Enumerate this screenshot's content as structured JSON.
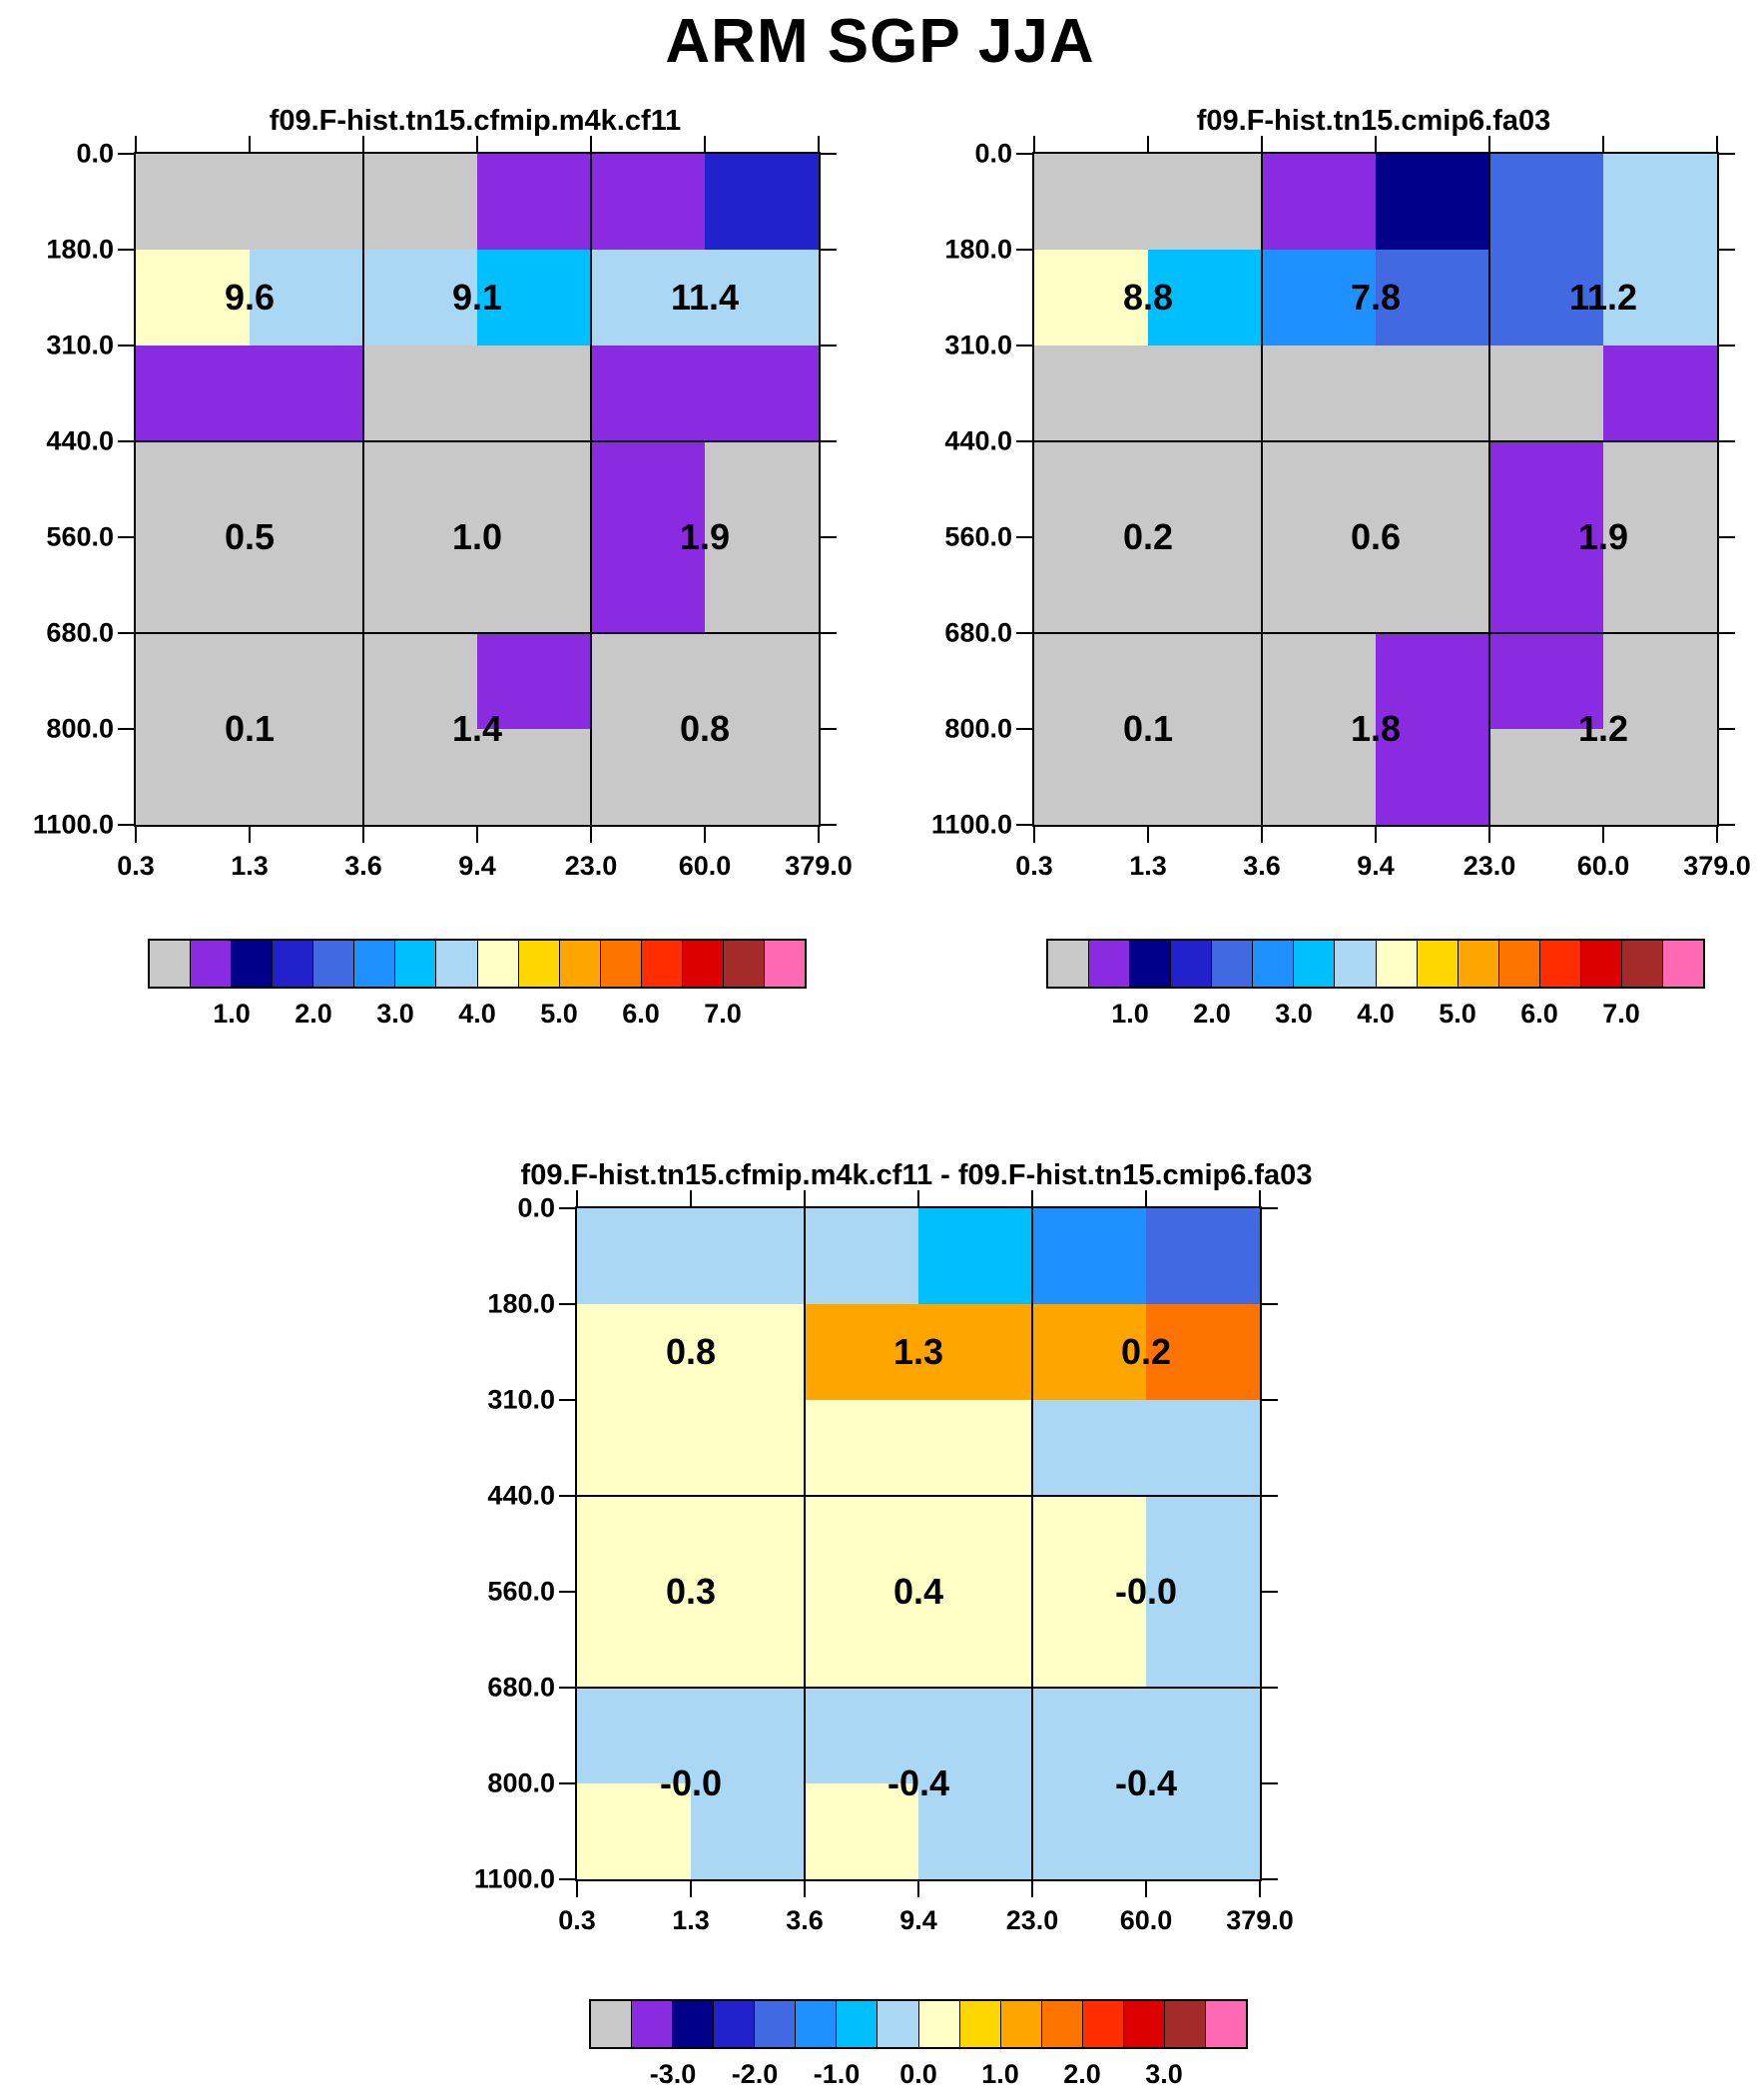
{
  "title": "ARM SGP JJA",
  "palette": {
    "gray": "#C8C8C8",
    "purple": "#8A2BE2",
    "navy": "#00008B",
    "blue": "#2222CC",
    "royal": "#4169E1",
    "dodger": "#1E90FF",
    "cyan": "#00BFFF",
    "lightblue": "#A9D7F4",
    "cream": "#FFFFC6",
    "gold": "#FFD700",
    "orange": "#FFA500",
    "darkorange": "#FF7300",
    "redorange": "#FF2D00",
    "red": "#DC0000",
    "brick": "#A52A2A",
    "pink": "#FF69B4"
  },
  "colorbar_sequence": [
    "gray",
    "purple",
    "navy",
    "blue",
    "royal",
    "dodger",
    "cyan",
    "lightblue",
    "cream",
    "gold",
    "orange",
    "darkorange",
    "redorange",
    "red",
    "brick",
    "pink"
  ],
  "chart_data": {
    "type": "heatmap",
    "x_bin_edges": [
      0.3,
      1.3,
      3.6,
      9.4,
      23.0,
      60.0,
      379.0
    ],
    "y_bin_edges": [
      0.0,
      180.0,
      310.0,
      440.0,
      560.0,
      680.0,
      800.0,
      1100.0
    ],
    "x_tick_labels": [
      "0.3",
      "1.3",
      "3.6",
      "9.4",
      "23.0",
      "60.0",
      "379.0"
    ],
    "y_tick_labels": [
      "0.0",
      "180.0",
      "310.0",
      "440.0",
      "560.0",
      "680.0",
      "800.0",
      "1100.0"
    ],
    "panels": [
      {
        "title": "f09.F-hist.tn15.cfmip.m4k.cf11",
        "colorbar_labels": [
          "1.0",
          "2.0",
          "3.0",
          "4.0",
          "5.0",
          "6.0",
          "7.0"
        ],
        "block_values": [
          [
            "9.6",
            "9.1",
            "11.4"
          ],
          [
            "0.5",
            "1.0",
            "1.9"
          ],
          [
            "0.1",
            "1.4",
            "0.8"
          ]
        ],
        "cells": [
          [
            "gray",
            "gray",
            "gray",
            "purple",
            "purple",
            "blue"
          ],
          [
            "cream",
            "lightblue",
            "lightblue",
            "cyan",
            "lightblue",
            "lightblue"
          ],
          [
            "purple",
            "purple",
            "gray",
            "gray",
            "purple",
            "purple"
          ],
          [
            "gray",
            "gray",
            "gray",
            "gray",
            "purple",
            "gray"
          ],
          [
            "gray",
            "gray",
            "gray",
            "gray",
            "purple",
            "gray"
          ],
          [
            "gray",
            "gray",
            "gray",
            "purple",
            "gray",
            "gray"
          ],
          [
            "gray",
            "gray",
            "gray",
            "gray",
            "gray",
            "gray"
          ]
        ]
      },
      {
        "title": "f09.F-hist.tn15.cmip6.fa03",
        "colorbar_labels": [
          "1.0",
          "2.0",
          "3.0",
          "4.0",
          "5.0",
          "6.0",
          "7.0"
        ],
        "block_values": [
          [
            "8.8",
            "7.8",
            "11.2"
          ],
          [
            "0.2",
            "0.6",
            "1.9"
          ],
          [
            "0.1",
            "1.8",
            "1.2"
          ]
        ],
        "cells": [
          [
            "gray",
            "gray",
            "purple",
            "navy",
            "royal",
            "lightblue"
          ],
          [
            "cream",
            "cyan",
            "dodger",
            "royal",
            "royal",
            "lightblue"
          ],
          [
            "gray",
            "gray",
            "gray",
            "gray",
            "gray",
            "purple"
          ],
          [
            "gray",
            "gray",
            "gray",
            "gray",
            "purple",
            "gray"
          ],
          [
            "gray",
            "gray",
            "gray",
            "gray",
            "purple",
            "gray"
          ],
          [
            "gray",
            "gray",
            "gray",
            "purple",
            "purple",
            "gray"
          ],
          [
            "gray",
            "gray",
            "gray",
            "purple",
            "gray",
            "gray"
          ]
        ]
      },
      {
        "title": "f09.F-hist.tn15.cfmip.m4k.cf11 - f09.F-hist.tn15.cmip6.fa03",
        "colorbar_labels": [
          "-3.0",
          "-2.0",
          "-1.0",
          "0.0",
          "1.0",
          "2.0",
          "3.0"
        ],
        "block_values": [
          [
            "0.8",
            "1.3",
            "0.2"
          ],
          [
            "0.3",
            "0.4",
            "-0.0"
          ],
          [
            "-0.0",
            "-0.4",
            "-0.4"
          ]
        ],
        "cells": [
          [
            "lightblue",
            "lightblue",
            "lightblue",
            "cyan",
            "dodger",
            "royal"
          ],
          [
            "cream",
            "cream",
            "orange",
            "orange",
            "orange",
            "darkorange"
          ],
          [
            "cream",
            "cream",
            "cream",
            "cream",
            "lightblue",
            "lightblue"
          ],
          [
            "cream",
            "cream",
            "cream",
            "cream",
            "cream",
            "lightblue"
          ],
          [
            "cream",
            "cream",
            "cream",
            "cream",
            "cream",
            "lightblue"
          ],
          [
            "lightblue",
            "lightblue",
            "lightblue",
            "lightblue",
            "lightblue",
            "lightblue"
          ],
          [
            "cream",
            "lightblue",
            "cream",
            "lightblue",
            "lightblue",
            "lightblue"
          ]
        ]
      }
    ]
  }
}
